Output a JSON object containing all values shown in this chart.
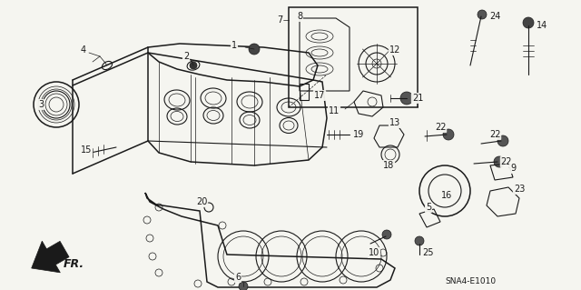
{
  "background_color": "#f5f5f0",
  "line_color": "#1a1a1a",
  "diagram_code_text": "SNA4-E1010",
  "figsize": [
    6.4,
    3.19
  ],
  "dpi": 100,
  "font_size_labels": 7.0,
  "font_size_code": 6.5,
  "font_size_fr": 9
}
